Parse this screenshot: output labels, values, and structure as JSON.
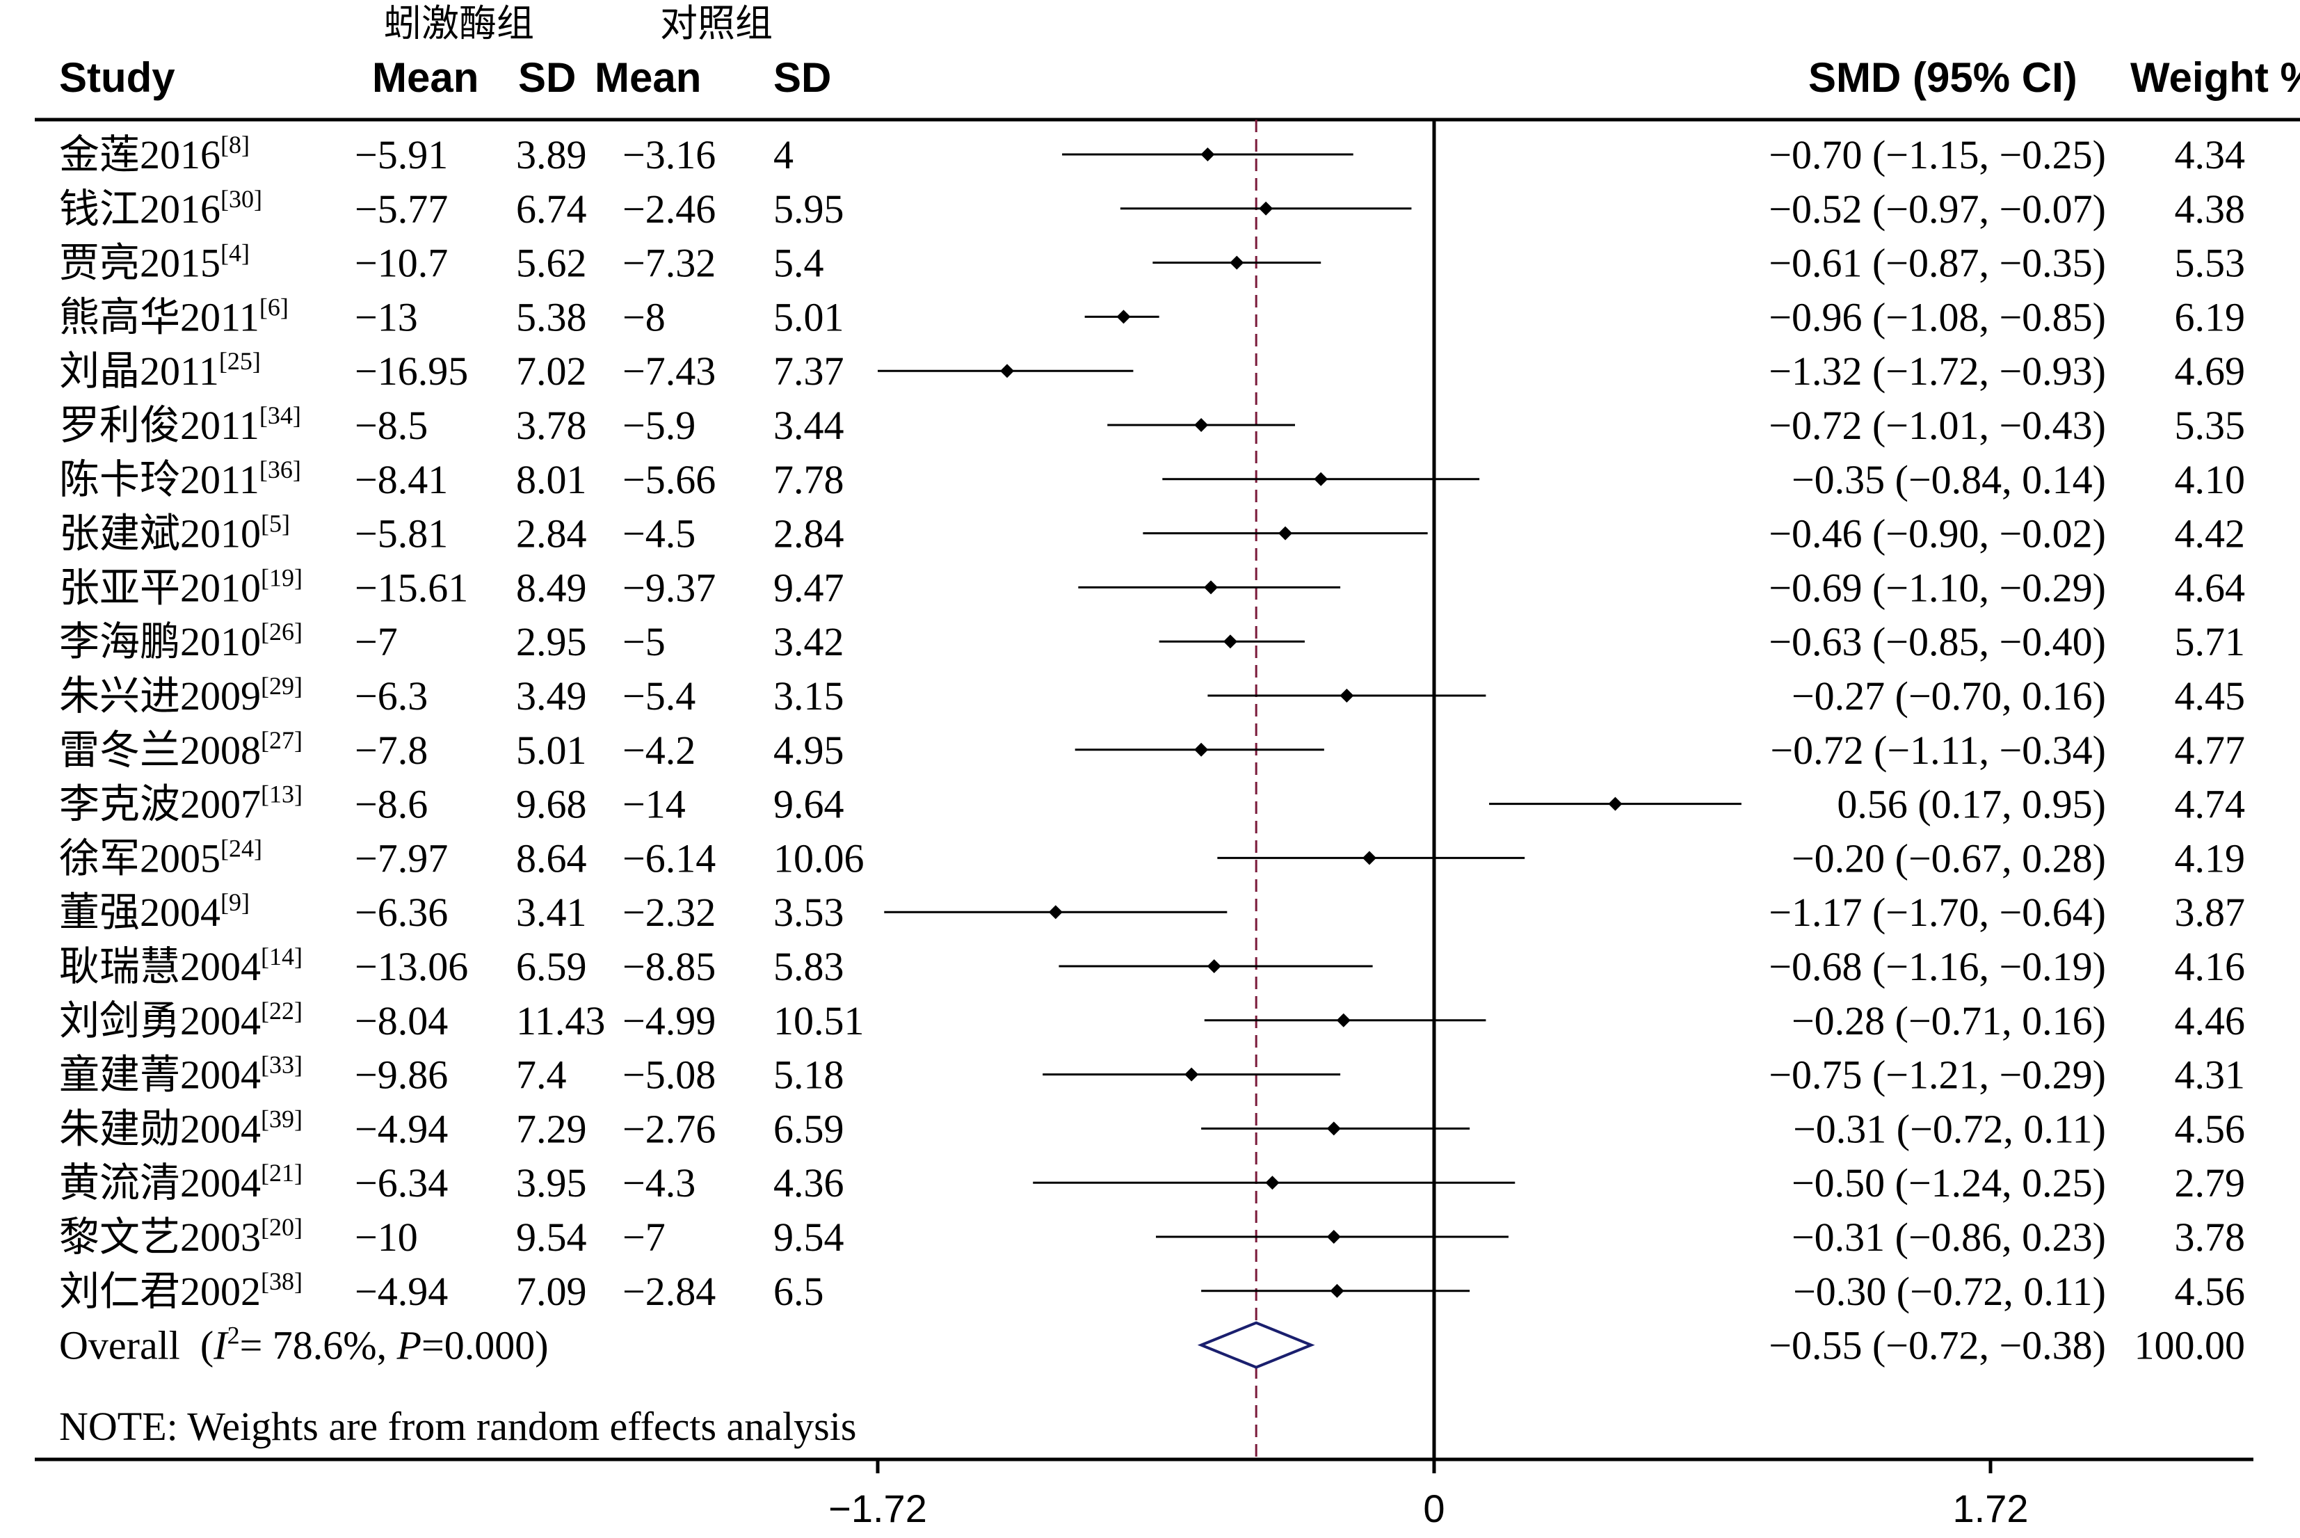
{
  "header": {
    "group_treatment": "蚓激酶组",
    "group_control": "对照组",
    "study": "Study",
    "mean_t": "Mean",
    "sd_t": "SD",
    "mean_c": "Mean",
    "sd_c": "SD",
    "smd": "SMD (95% CI)",
    "weight": "Weight %"
  },
  "chart_data": {
    "type": "forest",
    "effect_measure": "SMD",
    "x_ticks": [
      -1.72,
      0,
      1.72
    ],
    "x_tick_labels": [
      "−1.72",
      "0",
      "1.72"
    ],
    "xlim": [
      -1.72,
      2.6
    ],
    "reference_line": 0,
    "overall_line": -0.55,
    "studies": [
      {
        "name": "金莲2016",
        "ref": "[8]",
        "mean_t": "−5.91",
        "sd_t": "3.89",
        "mean_c": "−3.16",
        "sd_c": "4",
        "est": -0.7,
        "lo": -1.15,
        "hi": -0.25,
        "ci_text": "−0.70 (−1.15, −0.25)",
        "weight": "4.34"
      },
      {
        "name": "钱江2016",
        "ref": "[30]",
        "mean_t": "−5.77",
        "sd_t": "6.74",
        "mean_c": "−2.46",
        "sd_c": "5.95",
        "est": -0.52,
        "lo": -0.97,
        "hi": -0.07,
        "ci_text": "−0.52 (−0.97, −0.07)",
        "weight": "4.38"
      },
      {
        "name": "贾亮2015",
        "ref": "[4]",
        "mean_t": "−10.7",
        "sd_t": "5.62",
        "mean_c": "−7.32",
        "sd_c": "5.4",
        "est": -0.61,
        "lo": -0.87,
        "hi": -0.35,
        "ci_text": "−0.61 (−0.87, −0.35)",
        "weight": "5.53"
      },
      {
        "name": "熊高华2011",
        "ref": "[6]",
        "mean_t": "−13",
        "sd_t": "5.38",
        "mean_c": "−8",
        "sd_c": "5.01",
        "est": -0.96,
        "lo": -1.08,
        "hi": -0.85,
        "ci_text": "−0.96 (−1.08, −0.85)",
        "weight": "6.19"
      },
      {
        "name": "刘晶2011",
        "ref": "[25]",
        "mean_t": "−16.95",
        "sd_t": "7.02",
        "mean_c": "−7.43",
        "sd_c": "7.37",
        "est": -1.32,
        "lo": -1.72,
        "hi": -0.93,
        "ci_text": "−1.32 (−1.72, −0.93)",
        "weight": "4.69"
      },
      {
        "name": "罗利俊2011",
        "ref": "[34]",
        "mean_t": "−8.5",
        "sd_t": "3.78",
        "mean_c": "−5.9",
        "sd_c": "3.44",
        "est": -0.72,
        "lo": -1.01,
        "hi": -0.43,
        "ci_text": "−0.72 (−1.01, −0.43)",
        "weight": "5.35"
      },
      {
        "name": "陈卡玲2011",
        "ref": "[36]",
        "mean_t": "−8.41",
        "sd_t": "8.01",
        "mean_c": "−5.66",
        "sd_c": "7.78",
        "est": -0.35,
        "lo": -0.84,
        "hi": 0.14,
        "ci_text": "−0.35 (−0.84, 0.14)",
        "weight": "4.10"
      },
      {
        "name": "张建斌2010",
        "ref": "[5]",
        "mean_t": "−5.81",
        "sd_t": "2.84",
        "mean_c": "−4.5",
        "sd_c": "2.84",
        "est": -0.46,
        "lo": -0.9,
        "hi": -0.02,
        "ci_text": "−0.46 (−0.90, −0.02)",
        "weight": "4.42"
      },
      {
        "name": "张亚平2010",
        "ref": "[19]",
        "mean_t": "−15.61",
        "sd_t": "8.49",
        "mean_c": "−9.37",
        "sd_c": "9.47",
        "est": -0.69,
        "lo": -1.1,
        "hi": -0.29,
        "ci_text": "−0.69 (−1.10, −0.29)",
        "weight": "4.64"
      },
      {
        "name": "李海鹏2010",
        "ref": "[26]",
        "mean_t": "−7",
        "sd_t": "2.95",
        "mean_c": "−5",
        "sd_c": "3.42",
        "est": -0.63,
        "lo": -0.85,
        "hi": -0.4,
        "ci_text": "−0.63 (−0.85, −0.40)",
        "weight": "5.71"
      },
      {
        "name": "朱兴进2009",
        "ref": "[29]",
        "mean_t": "−6.3",
        "sd_t": "3.49",
        "mean_c": "−5.4",
        "sd_c": "3.15",
        "est": -0.27,
        "lo": -0.7,
        "hi": 0.16,
        "ci_text": "−0.27 (−0.70, 0.16)",
        "weight": "4.45"
      },
      {
        "name": "雷冬兰2008",
        "ref": "[27]",
        "mean_t": "−7.8",
        "sd_t": "5.01",
        "mean_c": "−4.2",
        "sd_c": "4.95",
        "est": -0.72,
        "lo": -1.11,
        "hi": -0.34,
        "ci_text": "−0.72 (−1.11, −0.34)",
        "weight": "4.77"
      },
      {
        "name": "李克波2007",
        "ref": "[13]",
        "mean_t": "−8.6",
        "sd_t": "9.68",
        "mean_c": "−14",
        "sd_c": "9.64",
        "est": 0.56,
        "lo": 0.17,
        "hi": 0.95,
        "ci_text": "0.56 (0.17, 0.95)",
        "weight": "4.74"
      },
      {
        "name": "徐军2005",
        "ref": "[24]",
        "mean_t": "−7.97",
        "sd_t": "8.64",
        "mean_c": "−6.14",
        "sd_c": "10.06",
        "est": -0.2,
        "lo": -0.67,
        "hi": 0.28,
        "ci_text": "−0.20 (−0.67, 0.28)",
        "weight": "4.19"
      },
      {
        "name": "董强2004",
        "ref": "[9]",
        "mean_t": "−6.36",
        "sd_t": "3.41",
        "mean_c": "−2.32",
        "sd_c": "3.53",
        "est": -1.17,
        "lo": -1.7,
        "hi": -0.64,
        "ci_text": "−1.17 (−1.70, −0.64)",
        "weight": "3.87"
      },
      {
        "name": "耿瑞慧2004",
        "ref": "[14]",
        "mean_t": "−13.06",
        "sd_t": "6.59",
        "mean_c": "−8.85",
        "sd_c": "5.83",
        "est": -0.68,
        "lo": -1.16,
        "hi": -0.19,
        "ci_text": "−0.68 (−1.16, −0.19)",
        "weight": "4.16"
      },
      {
        "name": "刘剑勇2004",
        "ref": "[22]",
        "mean_t": "−8.04",
        "sd_t": "11.43",
        "mean_c": "−4.99",
        "sd_c": "10.51",
        "est": -0.28,
        "lo": -0.71,
        "hi": 0.16,
        "ci_text": "−0.28 (−0.71, 0.16)",
        "weight": "4.46"
      },
      {
        "name": "童建菁2004",
        "ref": "[33]",
        "mean_t": "−9.86",
        "sd_t": "7.4",
        "mean_c": "−5.08",
        "sd_c": "5.18",
        "est": -0.75,
        "lo": -1.21,
        "hi": -0.29,
        "ci_text": "−0.75 (−1.21, −0.29)",
        "weight": "4.31"
      },
      {
        "name": "朱建勋2004",
        "ref": "[39]",
        "mean_t": "−4.94",
        "sd_t": "7.29",
        "mean_c": "−2.76",
        "sd_c": "6.59",
        "est": -0.31,
        "lo": -0.72,
        "hi": 0.11,
        "ci_text": "−0.31 (−0.72, 0.11)",
        "weight": "4.56"
      },
      {
        "name": "黄流清2004",
        "ref": "[21]",
        "mean_t": "−6.34",
        "sd_t": "3.95",
        "mean_c": "−4.3",
        "sd_c": "4.36",
        "est": -0.5,
        "lo": -1.24,
        "hi": 0.25,
        "ci_text": "−0.50 (−1.24, 0.25)",
        "weight": "2.79"
      },
      {
        "name": "黎文艺2003",
        "ref": "[20]",
        "mean_t": "−10",
        "sd_t": "9.54",
        "mean_c": "−7",
        "sd_c": "9.54",
        "est": -0.31,
        "lo": -0.86,
        "hi": 0.23,
        "ci_text": "−0.31 (−0.86, 0.23)",
        "weight": "3.78"
      },
      {
        "name": "刘仁君2002",
        "ref": "[38]",
        "mean_t": "−4.94",
        "sd_t": "7.09",
        "mean_c": "−2.84",
        "sd_c": "6.5",
        "est": -0.3,
        "lo": -0.72,
        "hi": 0.11,
        "ci_text": "−0.30 (−0.72, 0.11)",
        "weight": "4.56"
      }
    ],
    "overall": {
      "label_prefix": "Overall  (",
      "i_letter": "I",
      "i_sup": "2",
      "i_value": "= 78.6%, ",
      "p_letter": "P",
      "p_value": "=0.000)",
      "est": -0.55,
      "lo": -0.72,
      "hi": -0.38,
      "ci_text": "−0.55 (−0.72, −0.38)",
      "weight": "100.00"
    },
    "note": "NOTE: Weights are from random effects analysis",
    "colors": {
      "ink": "#000000",
      "overall_diamond": "#1a1f6e",
      "overall_line": "#7a1a3a"
    }
  }
}
